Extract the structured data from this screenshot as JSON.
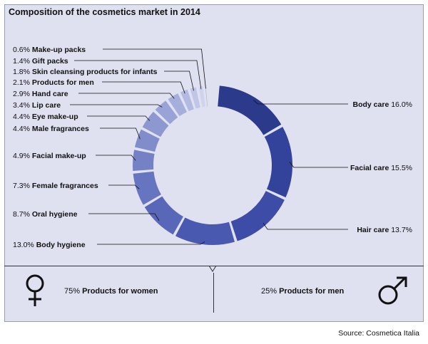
{
  "title": "Composition of the cosmetics market in 2014",
  "chart_data": {
    "type": "pie",
    "title": "Composition of the cosmetics market in 2014",
    "unit": "%",
    "slices": [
      {
        "label": "Body care",
        "value": 16.0,
        "display": "16.0%",
        "color": "#2c3a8c"
      },
      {
        "label": "Facial care",
        "value": 15.5,
        "display": "15.5%",
        "color": "#33429a"
      },
      {
        "label": "Hair care",
        "value": 13.7,
        "display": "13.7%",
        "color": "#3d4ca6"
      },
      {
        "label": "Body hygiene",
        "value": 13.0,
        "display": "13.0%",
        "color": "#4a59b0"
      },
      {
        "label": "Oral hygiene",
        "value": 8.7,
        "display": "8.7%",
        "color": "#5967b8"
      },
      {
        "label": "Female fragrances",
        "value": 7.3,
        "display": "7.3%",
        "color": "#6774bf"
      },
      {
        "label": "Facial make-up",
        "value": 4.9,
        "display": "4.9%",
        "color": "#7481c5"
      },
      {
        "label": "Male fragrances",
        "value": 4.4,
        "display": "4.4%",
        "color": "#818dcb"
      },
      {
        "label": "Eye make-up",
        "value": 4.4,
        "display": "4.4%",
        "color": "#8d98d0"
      },
      {
        "label": "Lip care",
        "value": 3.4,
        "display": "3.4%",
        "color": "#9aa3d6"
      },
      {
        "label": "Hand care",
        "value": 2.9,
        "display": "2.9%",
        "color": "#a6aedb"
      },
      {
        "label": "Products for men",
        "value": 2.1,
        "display": "2.1%",
        "color": "#b3bae1"
      },
      {
        "label": "Skin cleansing products for infants",
        "value": 1.8,
        "display": "1.8%",
        "color": "#c0c6e7"
      },
      {
        "label": "Gift packs",
        "value": 1.4,
        "display": "1.4%",
        "color": "#ced3ee"
      },
      {
        "label": "Make-up packs",
        "value": 0.6,
        "display": "0.6%",
        "color": "#eef0fa"
      }
    ]
  },
  "split": {
    "women": {
      "value": "75%",
      "label": "Products for women"
    },
    "men": {
      "value": "25%",
      "label": "Products for men"
    }
  },
  "source": "Source: Cosmetica Italia"
}
